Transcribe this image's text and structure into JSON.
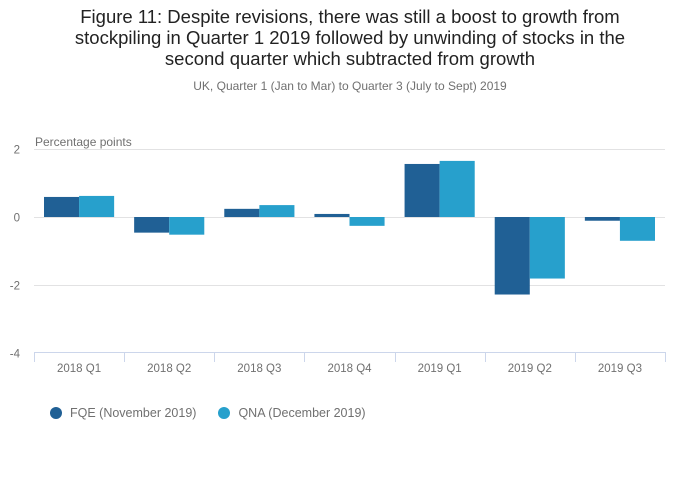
{
  "chart_data": {
    "type": "bar",
    "title": "Figure 11: Despite revisions, there was still a boost to growth from stockpiling in Quarter 1 2019 followed by unwinding of stocks in the second quarter which subtracted from growth",
    "title_lines": [
      "Figure 11: Despite revisions, there was still a boost to growth from",
      "stockpiling in Quarter 1 2019 followed by unwinding of stocks in the",
      "second quarter which subtracted from growth"
    ],
    "subtitle": "UK, Quarter 1 (Jan to Mar) to Quarter 3 (July to Sept) 2019",
    "xlabel": "",
    "ylabel": "Percentage points",
    "categories": [
      "2018 Q1",
      "2018 Q2",
      "2018 Q3",
      "2018 Q4",
      "2019 Q1",
      "2019 Q2",
      "2019 Q3"
    ],
    "series": [
      {
        "name": "FQE (November 2019)",
        "color": "#206095",
        "values": [
          0.59,
          -0.46,
          0.24,
          0.09,
          1.56,
          -2.28,
          -0.11
        ]
      },
      {
        "name": "QNA (December 2019)",
        "color": "#27a0cc",
        "values": [
          0.62,
          -0.52,
          0.35,
          -0.26,
          1.65,
          -1.81,
          -0.7
        ]
      }
    ],
    "ylim": [
      -4,
      2
    ],
    "yticks": [
      2,
      0,
      -2,
      -4
    ],
    "grid": true,
    "legend": "bottom-left"
  }
}
